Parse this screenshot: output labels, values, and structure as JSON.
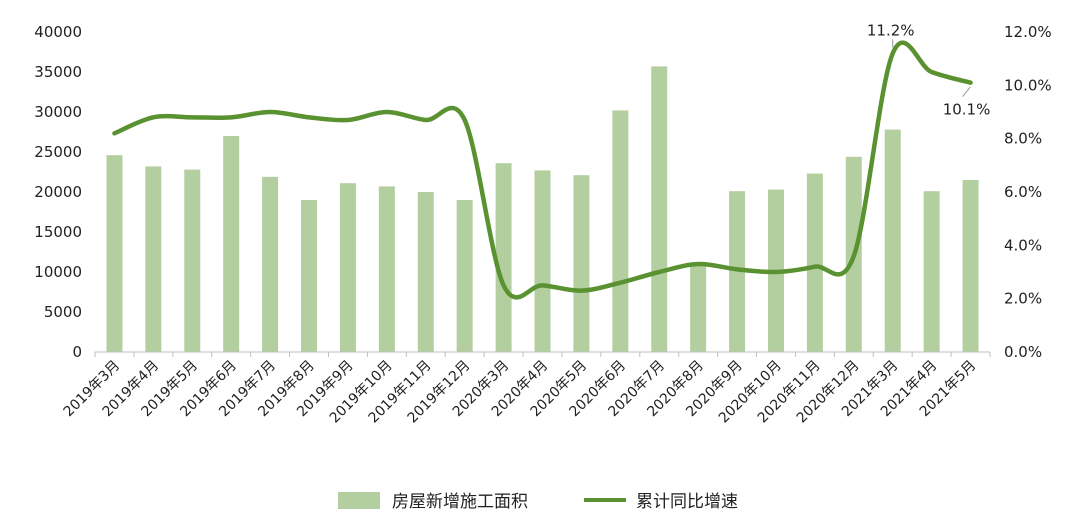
{
  "chart_data": {
    "type": "bar+line",
    "title": "",
    "xlabel": "",
    "categories": [
      "2019年3月",
      "2019年4月",
      "2019年5月",
      "2019年6月",
      "2019年7月",
      "2019年8月",
      "2019年9月",
      "2019年10月",
      "2019年11月",
      "2019年12月",
      "2020年3月",
      "2020年4月",
      "2020年5月",
      "2020年6月",
      "2020年7月",
      "2020年8月",
      "2020年9月",
      "2020年10月",
      "2020年11月",
      "2020年12月",
      "2021年3月",
      "2021年4月",
      "2021年5月"
    ],
    "series": [
      {
        "name": "房屋新增施工面积",
        "type": "bar",
        "axis": "left",
        "color": "#b3cfa0",
        "values": [
          24600,
          23200,
          22800,
          27000,
          21900,
          19000,
          21100,
          20700,
          20000,
          19000,
          23600,
          22700,
          22100,
          30200,
          35700,
          11200,
          20100,
          20300,
          22300,
          24400,
          27800,
          20100,
          21500
        ]
      },
      {
        "name": "累计同比增速",
        "type": "line",
        "axis": "right",
        "color": "#5a9131",
        "values": [
          8.2,
          8.8,
          8.8,
          8.8,
          9.0,
          8.8,
          8.7,
          9.0,
          8.7,
          8.7,
          2.5,
          2.5,
          2.3,
          2.6,
          3.0,
          3.3,
          3.1,
          3.0,
          3.2,
          3.6,
          11.2,
          10.5,
          10.1
        ]
      }
    ],
    "y_left": {
      "lim": [
        0,
        40000
      ],
      "ticks": [
        "0",
        "5000",
        "10000",
        "15000",
        "20000",
        "25000",
        "30000",
        "35000",
        "40000"
      ]
    },
    "y_right": {
      "lim": [
        0,
        12
      ],
      "ticks": [
        "0.0%",
        "2.0%",
        "4.0%",
        "6.0%",
        "8.0%",
        "10.0%",
        "12.0%"
      ]
    },
    "annotations": [
      {
        "index": 20,
        "text": "11.2%"
      },
      {
        "index": 22,
        "text": "10.1%"
      }
    ],
    "grid": false,
    "legend": {
      "position": "bottom",
      "items": [
        "房屋新增施工面积",
        "累计同比增速"
      ]
    }
  }
}
